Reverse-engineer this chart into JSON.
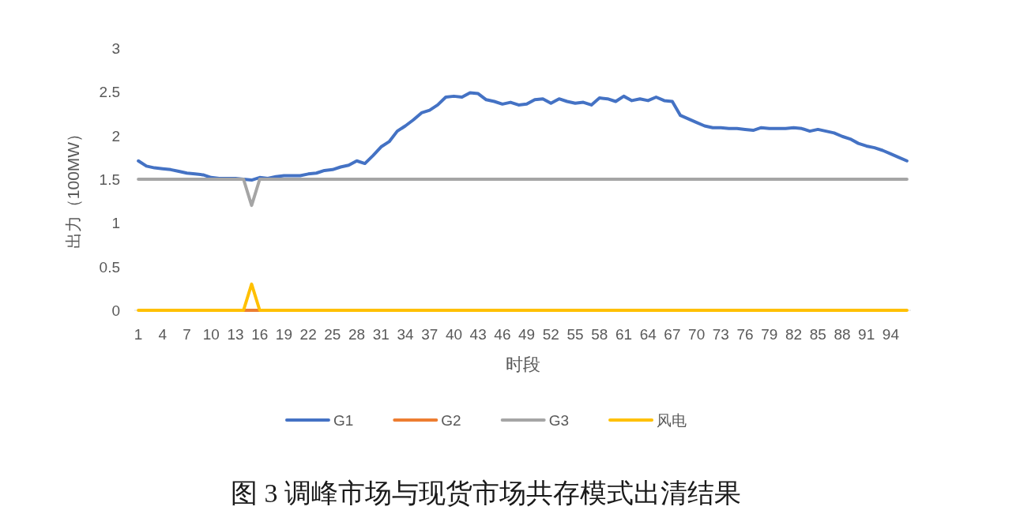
{
  "chart_data": {
    "type": "line",
    "title": "图 3 调峰市场与现货市场共存模式出清结果",
    "xlabel": "时段",
    "ylabel": "出力（100MW）",
    "categories": [
      "1",
      null,
      null,
      "4",
      null,
      null,
      "7",
      null,
      null,
      "10",
      null,
      null,
      "13",
      null,
      null,
      "16",
      null,
      null,
      "19",
      null,
      null,
      "22",
      null,
      null,
      "25",
      null,
      null,
      "28",
      null,
      null,
      "31",
      null,
      null,
      "34",
      null,
      null,
      "37",
      null,
      null,
      "40",
      null,
      null,
      "43",
      null,
      null,
      "46",
      null,
      null,
      "49",
      null,
      null,
      "52",
      null,
      null,
      "55",
      null,
      null,
      "58",
      null,
      null,
      "61",
      null,
      null,
      "64",
      null,
      null,
      "67",
      null,
      null,
      "70",
      null,
      null,
      "73",
      null,
      null,
      "76",
      null,
      null,
      "79",
      null,
      null,
      "82",
      null,
      null,
      "85",
      null,
      null,
      "88",
      null,
      null,
      "91",
      null,
      null,
      "94",
      null,
      null
    ],
    "series": [
      {
        "name": "G1",
        "color": "#4472c4",
        "values": [
          1.71,
          1.65,
          1.63,
          1.62,
          1.61,
          1.59,
          1.57,
          1.56,
          1.55,
          1.52,
          1.51,
          1.51,
          1.51,
          1.5,
          1.49,
          1.52,
          1.51,
          1.53,
          1.54,
          1.54,
          1.54,
          1.56,
          1.57,
          1.6,
          1.61,
          1.64,
          1.66,
          1.71,
          1.68,
          1.77,
          1.87,
          1.93,
          2.05,
          2.11,
          2.18,
          2.26,
          2.29,
          2.35,
          2.44,
          2.45,
          2.44,
          2.49,
          2.48,
          2.41,
          2.39,
          2.36,
          2.38,
          2.35,
          2.36,
          2.41,
          2.42,
          2.37,
          2.42,
          2.39,
          2.37,
          2.38,
          2.35,
          2.43,
          2.42,
          2.39,
          2.45,
          2.4,
          2.42,
          2.4,
          2.44,
          2.4,
          2.39,
          2.23,
          2.19,
          2.15,
          2.11,
          2.09,
          2.09,
          2.08,
          2.08,
          2.07,
          2.06,
          2.09,
          2.08,
          2.08,
          2.08,
          2.09,
          2.08,
          2.05,
          2.07,
          2.05,
          2.03,
          1.99,
          1.96,
          1.91,
          1.88,
          1.86,
          1.83,
          1.79,
          1.75,
          1.71
        ]
      },
      {
        "name": "G2",
        "color": "#ed7d31",
        "values": [
          null,
          null,
          null,
          null,
          null,
          null,
          null,
          null,
          null,
          null,
          null,
          null,
          null,
          0,
          0,
          0,
          null,
          null,
          null,
          null,
          null,
          null,
          null,
          null,
          null,
          null,
          null,
          null,
          null,
          null,
          null,
          null,
          null,
          null,
          null,
          null,
          null,
          null,
          null,
          null,
          null,
          null,
          null,
          null,
          null,
          null,
          null,
          null,
          null,
          null,
          null,
          null,
          null,
          null,
          null,
          null,
          null,
          null,
          null,
          null,
          null,
          null,
          null,
          null,
          null,
          null,
          null,
          null,
          null,
          null,
          null,
          null,
          null,
          null,
          null,
          null,
          null,
          null,
          null,
          null,
          null,
          null,
          null,
          null,
          null,
          null,
          null,
          null,
          null,
          null,
          null,
          null,
          null,
          null,
          null,
          null
        ]
      },
      {
        "name": "G3",
        "color": "#a5a5a5",
        "values": [
          1.5,
          1.5,
          1.5,
          1.5,
          1.5,
          1.5,
          1.5,
          1.5,
          1.5,
          1.5,
          1.5,
          1.5,
          1.5,
          1.5,
          1.2,
          1.5,
          1.5,
          1.5,
          1.5,
          1.5,
          1.5,
          1.5,
          1.5,
          1.5,
          1.5,
          1.5,
          1.5,
          1.5,
          1.5,
          1.5,
          1.5,
          1.5,
          1.5,
          1.5,
          1.5,
          1.5,
          1.5,
          1.5,
          1.5,
          1.5,
          1.5,
          1.5,
          1.5,
          1.5,
          1.5,
          1.5,
          1.5,
          1.5,
          1.5,
          1.5,
          1.5,
          1.5,
          1.5,
          1.5,
          1.5,
          1.5,
          1.5,
          1.5,
          1.5,
          1.5,
          1.5,
          1.5,
          1.5,
          1.5,
          1.5,
          1.5,
          1.5,
          1.5,
          1.5,
          1.5,
          1.5,
          1.5,
          1.5,
          1.5,
          1.5,
          1.5,
          1.5,
          1.5,
          1.5,
          1.5,
          1.5,
          1.5,
          1.5,
          1.5,
          1.5,
          1.5,
          1.5,
          1.5,
          1.5,
          1.5,
          1.5,
          1.5,
          1.5,
          1.5,
          1.5,
          1.5
        ]
      },
      {
        "name": "风电",
        "color": "#ffc000",
        "values": [
          0,
          0,
          0,
          0,
          0,
          0,
          0,
          0,
          0,
          0,
          0,
          0,
          0,
          0,
          0.3,
          0,
          0,
          0,
          0,
          0,
          0,
          0,
          0,
          0,
          0,
          0,
          0,
          0,
          0,
          0,
          0,
          0,
          0,
          0,
          0,
          0,
          0,
          0,
          0,
          0,
          0,
          0,
          0,
          0,
          0,
          0,
          0,
          0,
          0,
          0,
          0,
          0,
          0,
          0,
          0,
          0,
          0,
          0,
          0,
          0,
          0,
          0,
          0,
          0,
          0,
          0,
          0,
          0,
          0,
          0,
          0,
          0,
          0,
          0,
          0,
          0,
          0,
          0,
          0,
          0,
          0,
          0,
          0,
          0,
          0,
          0,
          0,
          0,
          0,
          0,
          0,
          0,
          0,
          0,
          0,
          0
        ]
      }
    ],
    "ylim": [
      0,
      3
    ],
    "yticks": [
      0,
      0.5,
      1,
      1.5,
      2,
      2.5,
      3
    ],
    "grid": false,
    "legend": "bottom",
    "marker": "none",
    "line_style": "solid"
  }
}
